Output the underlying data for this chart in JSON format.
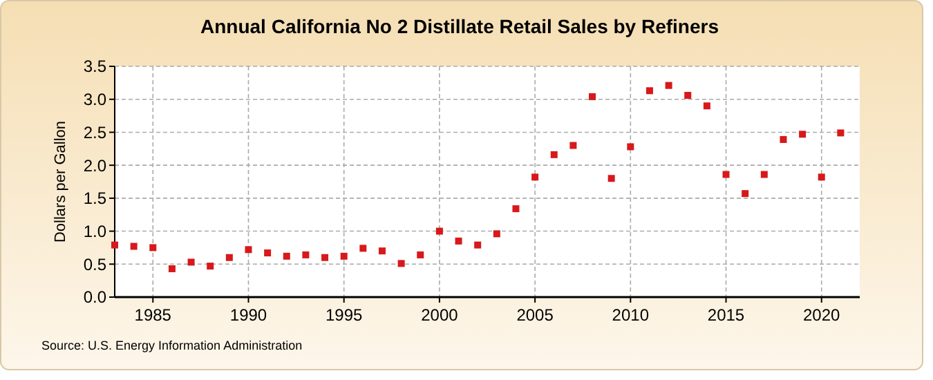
{
  "chart_data": {
    "type": "scatter",
    "title": "Annual California No 2 Distillate Retail Sales by Refiners",
    "ylabel": "Dollars per Gallon",
    "annotations": [
      "Source: U.S. Energy Information Administration"
    ],
    "x": [
      1983,
      1984,
      1985,
      1986,
      1987,
      1988,
      1989,
      1990,
      1991,
      1992,
      1993,
      1994,
      1995,
      1996,
      1997,
      1998,
      1999,
      2000,
      2001,
      2002,
      2003,
      2004,
      2005,
      2006,
      2007,
      2008,
      2009,
      2010,
      2011,
      2012,
      2013,
      2014,
      2015,
      2016,
      2017,
      2018,
      2019,
      2020,
      2021
    ],
    "series": [
      {
        "color": "#d7191c",
        "values": [
          0.79,
          0.77,
          0.75,
          0.43,
          0.53,
          0.47,
          0.6,
          0.72,
          0.67,
          0.62,
          0.64,
          0.6,
          0.62,
          0.74,
          0.7,
          0.51,
          0.64,
          1.0,
          0.85,
          0.79,
          0.96,
          1.34,
          1.82,
          2.16,
          2.3,
          3.04,
          1.8,
          2.28,
          3.13,
          3.21,
          3.06,
          2.9,
          1.86,
          1.57,
          1.86,
          2.39,
          2.47,
          1.82,
          2.49
        ]
      }
    ],
    "xlim": [
      1983,
      2022
    ],
    "xticks": [
      1985,
      1990,
      1995,
      2000,
      2005,
      2010,
      2015,
      2020
    ],
    "ylim": [
      0,
      3.5
    ],
    "yticks": [
      {
        "value": 0,
        "label": "0.0"
      },
      {
        "value": 0.5,
        "label": "0.5"
      },
      {
        "value": 1,
        "label": "1.0"
      },
      {
        "value": 1.5,
        "label": "1.5"
      },
      {
        "value": 2,
        "label": "2.0"
      },
      {
        "value": 2.5,
        "label": "2.5"
      },
      {
        "value": 3,
        "label": "3.0"
      },
      {
        "value": 3.5,
        "label": "3.5"
      }
    ],
    "grid": true,
    "marker": "square"
  }
}
